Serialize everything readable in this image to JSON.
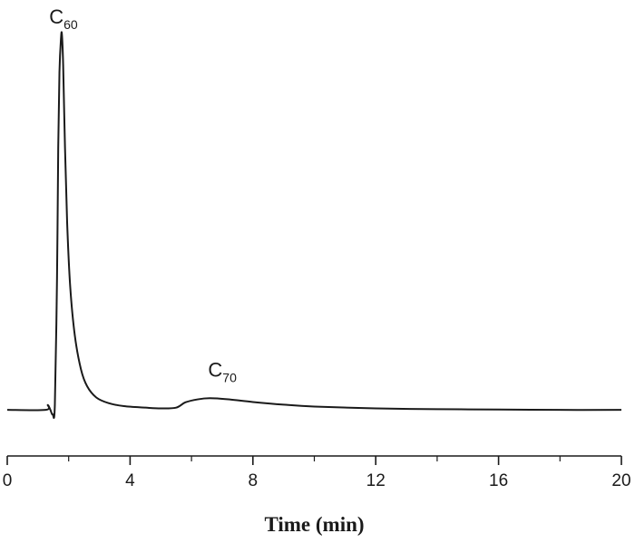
{
  "chart_data": {
    "type": "line",
    "title": "",
    "xlabel": "Time (min)",
    "ylabel": "",
    "xlim": [
      0,
      20
    ],
    "ylim": [
      0,
      100
    ],
    "x_ticks": [
      0,
      4,
      8,
      12,
      16,
      20
    ],
    "x_minor_ticks": [
      2,
      6,
      10,
      14,
      18
    ],
    "grid": false,
    "legend": "none",
    "series": [
      {
        "x": [
          0,
          1.25,
          1.32,
          1.4,
          1.48,
          1.55,
          1.62,
          1.66,
          1.7,
          1.75,
          1.78,
          1.82,
          1.88,
          1.95,
          2.05,
          2.2,
          2.4,
          2.6,
          2.9,
          3.3,
          3.8,
          4.5,
          5.0,
          5.5,
          5.8,
          6.2,
          6.6,
          7.2,
          8.0,
          9.0,
          10.0,
          12.0,
          14.0,
          16.0,
          18.0,
          20.0
        ],
        "y": [
          0.2,
          0.2,
          1.5,
          0.3,
          -1.0,
          1.5,
          35,
          70,
          90,
          99,
          100,
          92,
          70,
          50,
          33,
          20,
          11,
          6.5,
          3.5,
          2.0,
          1.2,
          0.8,
          0.6,
          0.8,
          2.2,
          3.0,
          3.3,
          3.0,
          2.3,
          1.6,
          1.1,
          0.6,
          0.4,
          0.3,
          0.2,
          0.2
        ]
      }
    ],
    "annotations": [
      {
        "base": "C",
        "sub": "60",
        "x": 1.78,
        "y": 100
      },
      {
        "base": "C",
        "sub": "70",
        "x": 6.6,
        "y": 3.3
      }
    ]
  }
}
